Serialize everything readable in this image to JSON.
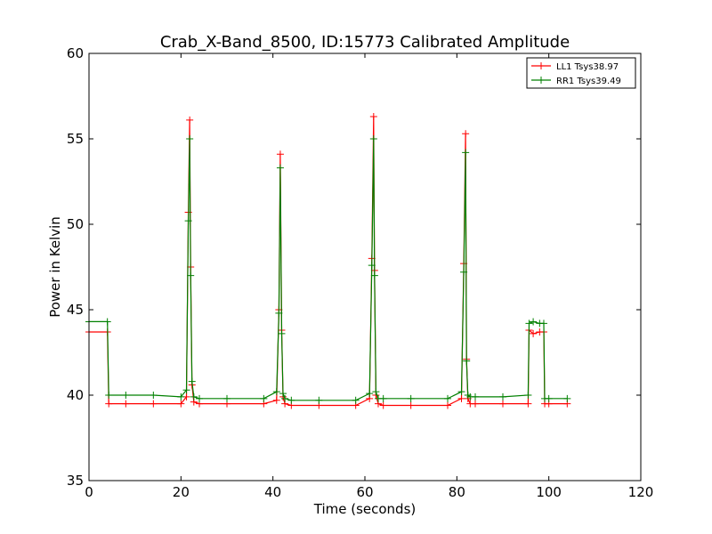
{
  "chart_data": {
    "type": "line",
    "title": "Crab_X-Band_8500, ID:15773 Calibrated Amplitude",
    "xlabel": "Time (seconds)",
    "ylabel": "Power in Kelvin",
    "xlim": [
      0,
      120
    ],
    "ylim": [
      35,
      60
    ],
    "xticks": [
      0,
      20,
      40,
      60,
      80,
      100,
      120
    ],
    "yticks": [
      35,
      40,
      45,
      50,
      55,
      60
    ],
    "grid": false,
    "legend_placement": "top-right",
    "markers": "plus",
    "series": [
      {
        "name": "LL1 Tsys38.97",
        "color": "#ff0000",
        "x": [
          0,
          4,
          4.3,
          8,
          14,
          20,
          21.2,
          21.6,
          21.9,
          22.1,
          22.4,
          22.8,
          24,
          30,
          38,
          40.8,
          41.3,
          41.6,
          41.9,
          42.2,
          42.6,
          44,
          50,
          58,
          61,
          61.5,
          61.9,
          62.1,
          62.4,
          62.9,
          64,
          70,
          78,
          81,
          81.5,
          81.9,
          82.1,
          82.4,
          82.9,
          84,
          90,
          95.5,
          95.7,
          96.6,
          98,
          98.9,
          99.1,
          100,
          104
        ],
        "y": [
          43.7,
          43.7,
          39.5,
          39.5,
          39.5,
          39.5,
          39.9,
          50.7,
          56.1,
          47.5,
          40.6,
          39.6,
          39.5,
          39.5,
          39.5,
          39.7,
          45.0,
          54.1,
          43.8,
          39.9,
          39.5,
          39.4,
          39.4,
          39.4,
          39.8,
          48.0,
          56.3,
          47.3,
          40.0,
          39.5,
          39.4,
          39.4,
          39.4,
          39.8,
          47.7,
          55.3,
          42.1,
          39.8,
          39.5,
          39.5,
          39.5,
          39.5,
          43.8,
          43.6,
          43.7,
          43.7,
          39.5,
          39.5,
          39.5
        ]
      },
      {
        "name": "RR1 Tsys39.49",
        "color": "#008000",
        "x": [
          0,
          4,
          4.3,
          8,
          14,
          20,
          21.2,
          21.6,
          21.9,
          22.1,
          22.4,
          22.8,
          24,
          30,
          38,
          40.8,
          41.3,
          41.6,
          41.9,
          42.2,
          42.6,
          44,
          50,
          58,
          61,
          61.5,
          61.9,
          62.1,
          62.4,
          62.9,
          64,
          70,
          78,
          81,
          81.5,
          81.9,
          82.1,
          82.4,
          82.9,
          84,
          90,
          95.5,
          95.7,
          96.6,
          98,
          98.9,
          99.1,
          100,
          104
        ],
        "y": [
          44.3,
          44.3,
          40.0,
          40.0,
          40.0,
          39.9,
          40.3,
          50.2,
          55.0,
          47.0,
          40.8,
          39.9,
          39.8,
          39.8,
          39.8,
          40.2,
          44.8,
          53.3,
          43.6,
          40.1,
          39.8,
          39.7,
          39.7,
          39.7,
          40.1,
          47.6,
          55.0,
          47.0,
          40.2,
          39.8,
          39.8,
          39.8,
          39.8,
          40.2,
          47.2,
          54.2,
          42.0,
          40.0,
          39.9,
          39.9,
          39.9,
          40.0,
          44.2,
          44.3,
          44.2,
          44.2,
          39.8,
          39.8,
          39.8
        ]
      }
    ]
  }
}
